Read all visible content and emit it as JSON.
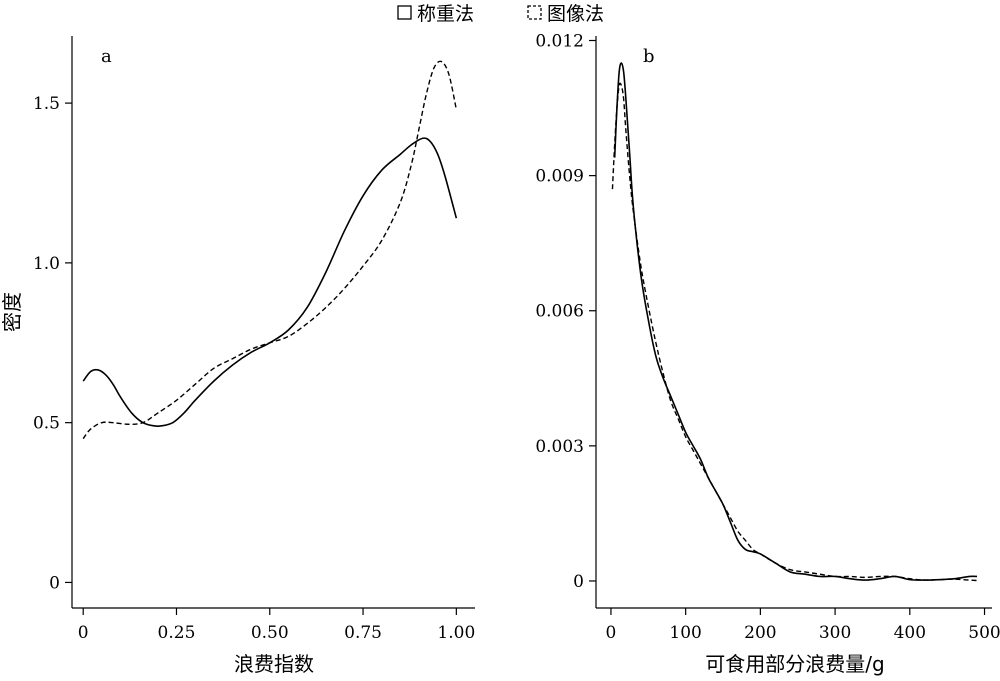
{
  "legend": {
    "items": [
      {
        "label": "称重法",
        "style": "solid"
      },
      {
        "label": "图像法",
        "style": "dashed"
      }
    ]
  },
  "chart_data": [
    {
      "type": "line",
      "panel": "a",
      "xlabel": "浪费指数",
      "ylabel": "密度",
      "xlim": [
        -0.03,
        1.05
      ],
      "ylim": [
        -0.08,
        1.71
      ],
      "xticks": [
        0,
        0.25,
        0.5,
        0.75,
        1.0
      ],
      "xtick_labels": [
        "0",
        "0.25",
        "0.50",
        "0.75",
        "1.00"
      ],
      "yticks": [
        0,
        0.5,
        1.0,
        1.5
      ],
      "ytick_labels": [
        "0",
        "0.5",
        "1.0",
        "1.5"
      ],
      "series": [
        {
          "name": "称重法",
          "style": "solid",
          "x": [
            0,
            0.02,
            0.04,
            0.06,
            0.08,
            0.1,
            0.13,
            0.16,
            0.19,
            0.21,
            0.24,
            0.27,
            0.3,
            0.35,
            0.4,
            0.45,
            0.5,
            0.55,
            0.6,
            0.65,
            0.7,
            0.75,
            0.8,
            0.85,
            0.88,
            0.91,
            0.93,
            0.95,
            0.97,
            1.0
          ],
          "y": [
            0.63,
            0.66,
            0.665,
            0.65,
            0.62,
            0.58,
            0.53,
            0.5,
            0.49,
            0.49,
            0.5,
            0.53,
            0.57,
            0.63,
            0.68,
            0.72,
            0.75,
            0.79,
            0.86,
            0.97,
            1.1,
            1.21,
            1.29,
            1.34,
            1.37,
            1.39,
            1.38,
            1.34,
            1.27,
            1.14
          ]
        },
        {
          "name": "图像法",
          "style": "dashed",
          "x": [
            0,
            0.02,
            0.05,
            0.08,
            0.12,
            0.16,
            0.2,
            0.25,
            0.3,
            0.35,
            0.4,
            0.45,
            0.5,
            0.55,
            0.6,
            0.65,
            0.7,
            0.75,
            0.8,
            0.85,
            0.88,
            0.9,
            0.92,
            0.94,
            0.96,
            0.98,
            1.0
          ],
          "y": [
            0.45,
            0.48,
            0.5,
            0.5,
            0.495,
            0.5,
            0.53,
            0.57,
            0.62,
            0.67,
            0.7,
            0.73,
            0.75,
            0.77,
            0.81,
            0.86,
            0.92,
            0.99,
            1.07,
            1.19,
            1.31,
            1.42,
            1.53,
            1.61,
            1.63,
            1.59,
            1.48
          ]
        }
      ]
    },
    {
      "type": "line",
      "panel": "b",
      "xlabel": "可食用部分浪费量/g",
      "ylabel": "",
      "xlim": [
        -20,
        510
      ],
      "ylim": [
        -0.0006,
        0.0121
      ],
      "xticks": [
        0,
        100,
        200,
        300,
        400,
        500
      ],
      "xtick_labels": [
        "0",
        "100",
        "200",
        "300",
        "400",
        "500"
      ],
      "yticks": [
        0,
        0.003,
        0.006,
        0.009,
        0.012
      ],
      "ytick_labels": [
        "0",
        "0.003",
        "0.006",
        "0.009",
        "0.012"
      ],
      "series": [
        {
          "name": "称重法",
          "style": "solid",
          "x": [
            5,
            8,
            11,
            14,
            17,
            20,
            25,
            30,
            40,
            50,
            60,
            70,
            80,
            90,
            100,
            110,
            120,
            130,
            140,
            150,
            160,
            170,
            180,
            190,
            200,
            220,
            240,
            260,
            280,
            300,
            320,
            340,
            360,
            380,
            400,
            420,
            440,
            460,
            480,
            490
          ],
          "y": [
            0.0094,
            0.0105,
            0.0113,
            0.0115,
            0.0113,
            0.0107,
            0.0095,
            0.0083,
            0.0068,
            0.0058,
            0.005,
            0.0045,
            0.0041,
            0.0037,
            0.0033,
            0.003,
            0.0027,
            0.0023,
            0.002,
            0.0017,
            0.0013,
            0.0009,
            0.0007,
            0.00065,
            0.0006,
            0.0004,
            0.0002,
            0.00015,
            0.0001,
            0.0001,
            5e-05,
            2e-05,
            5e-05,
            0.0001,
            3e-05,
            2e-05,
            3e-05,
            5e-05,
            0.0001,
            0.0001
          ]
        },
        {
          "name": "图像法",
          "style": "dashed",
          "x": [
            2,
            5,
            8,
            11,
            14,
            17,
            20,
            25,
            30,
            40,
            50,
            60,
            70,
            80,
            90,
            100,
            110,
            120,
            130,
            140,
            150,
            160,
            170,
            180,
            190,
            200,
            220,
            240,
            260,
            280,
            300,
            320,
            340,
            360,
            380,
            400,
            420,
            440,
            460,
            480,
            490
          ],
          "y": [
            0.0087,
            0.0097,
            0.0105,
            0.011,
            0.011,
            0.0107,
            0.01,
            0.009,
            0.0082,
            0.007,
            0.0061,
            0.0053,
            0.0046,
            0.004,
            0.0036,
            0.0032,
            0.0029,
            0.0026,
            0.0023,
            0.002,
            0.0017,
            0.0014,
            0.0011,
            0.0009,
            0.0007,
            0.0006,
            0.0004,
            0.00025,
            0.0002,
            0.00015,
            0.0001,
            0.0001,
            8e-05,
            0.0001,
            0.0001,
            5e-05,
            2e-05,
            3e-05,
            4e-05,
            2e-05,
            1e-05
          ]
        }
      ]
    }
  ]
}
